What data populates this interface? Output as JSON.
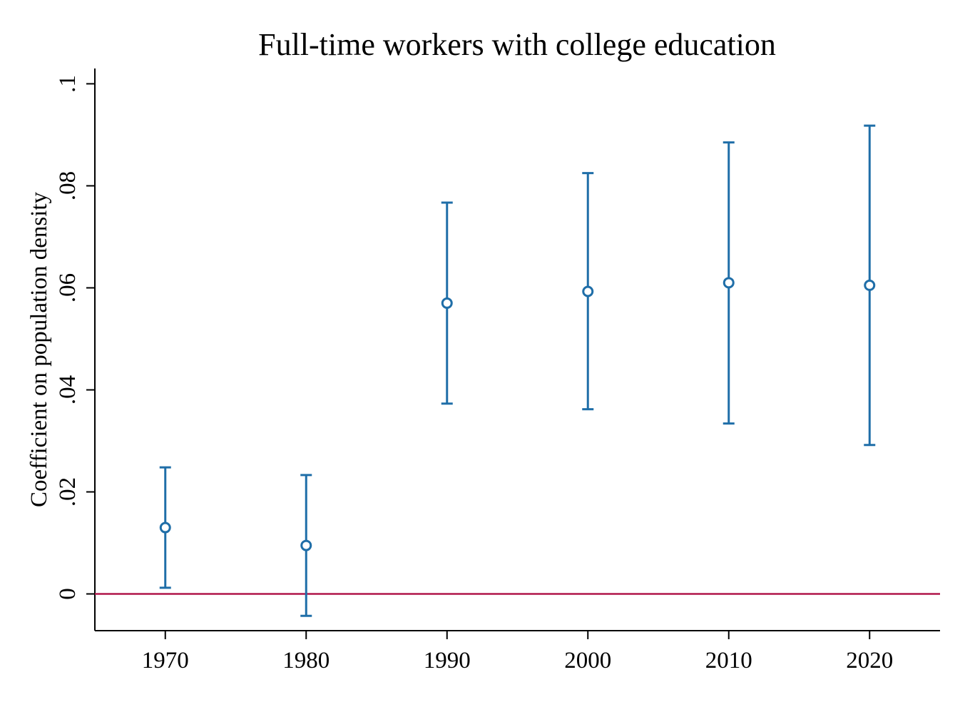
{
  "chart_data": {
    "type": "scatter",
    "title": "Full-time workers with college education",
    "xlabel": "",
    "ylabel": "Coefficient on population density",
    "x_ticks": [
      "1970",
      "1980",
      "1990",
      "2000",
      "2010",
      "2020"
    ],
    "y_ticks": [
      {
        "value": 0,
        "label": "0"
      },
      {
        "value": 0.02,
        "label": ".02"
      },
      {
        "value": 0.04,
        "label": ".04"
      },
      {
        "value": 0.06,
        "label": ".06"
      },
      {
        "value": 0.08,
        "label": ".08"
      },
      {
        "value": 0.1,
        "label": ".1"
      }
    ],
    "xlim": [
      1965,
      2025
    ],
    "ylim": [
      -0.0072,
      0.103
    ],
    "series": [
      {
        "points": [
          {
            "x": 1970,
            "y": 0.013,
            "lower": 0.0012,
            "upper": 0.0248
          },
          {
            "x": 1980,
            "y": 0.0095,
            "lower": -0.0043,
            "upper": 0.0233
          },
          {
            "x": 1990,
            "y": 0.057,
            "lower": 0.0373,
            "upper": 0.0767
          },
          {
            "x": 2000,
            "y": 0.0593,
            "lower": 0.0362,
            "upper": 0.0825
          },
          {
            "x": 2010,
            "y": 0.061,
            "lower": 0.0334,
            "upper": 0.0885
          },
          {
            "x": 2020,
            "y": 0.0605,
            "lower": 0.0292,
            "upper": 0.0918
          }
        ]
      }
    ],
    "reference_line": {
      "y": 0
    },
    "colors": {
      "series": "#1f6ea8",
      "reference_line": "#b0154a",
      "axis": "#000000"
    },
    "grid": false,
    "legend": "none"
  }
}
